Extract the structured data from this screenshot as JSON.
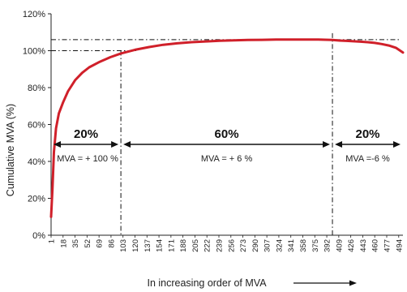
{
  "chart_data": {
    "type": "line",
    "title": "",
    "xlabel": "In increasing order of MVA",
    "ylabel": "Cumulative MVA (%)",
    "ylim": [
      0,
      120
    ],
    "y_ticks": [
      "0%",
      "20%",
      "40%",
      "60%",
      "80%",
      "100%",
      "120%"
    ],
    "x_range": [
      1,
      500
    ],
    "x_tick_labels": [
      "1",
      "18",
      "35",
      "52",
      "69",
      "86",
      "103",
      "120",
      "137",
      "154",
      "171",
      "188",
      "205",
      "222",
      "239",
      "256",
      "273",
      "290",
      "307",
      "324",
      "341",
      "358",
      "375",
      "392",
      "409",
      "426",
      "443",
      "460",
      "477",
      "494"
    ],
    "grid": false,
    "legend": "none",
    "line_color": "#d0202a",
    "series": [
      {
        "x": [
          1,
          3,
          5,
          8,
          12,
          18,
          25,
          35,
          45,
          55,
          70,
          85,
          100,
          120,
          140,
          160,
          180,
          200,
          220,
          240,
          260,
          280,
          300,
          320,
          340,
          360,
          380,
          400,
          410,
          420,
          430,
          440,
          450,
          460,
          470,
          480,
          490,
          500
        ],
        "y": [
          10,
          25,
          45,
          58,
          66,
          72,
          78,
          84,
          88,
          91,
          94,
          96.5,
          98.5,
          100.5,
          102,
          103.2,
          104,
          104.6,
          105,
          105.4,
          105.6,
          105.8,
          105.9,
          106,
          106,
          106,
          106,
          105.8,
          105.5,
          105.3,
          105.1,
          104.9,
          104.6,
          104.2,
          103.6,
          102.8,
          101.6,
          99
        ]
      }
    ],
    "reference_lines": {
      "hline_values": [
        100,
        106
      ],
      "vline_values": [
        100,
        400
      ]
    },
    "segments": [
      {
        "percent": "20%",
        "label": "MVA = + 100 %",
        "from": 1,
        "to": 100
      },
      {
        "percent": "60%",
        "label": "MVA = + 6 %",
        "from": 100,
        "to": 400
      },
      {
        "percent": "20%",
        "label": "MVA =-6 %",
        "from": 400,
        "to": 500
      }
    ]
  }
}
